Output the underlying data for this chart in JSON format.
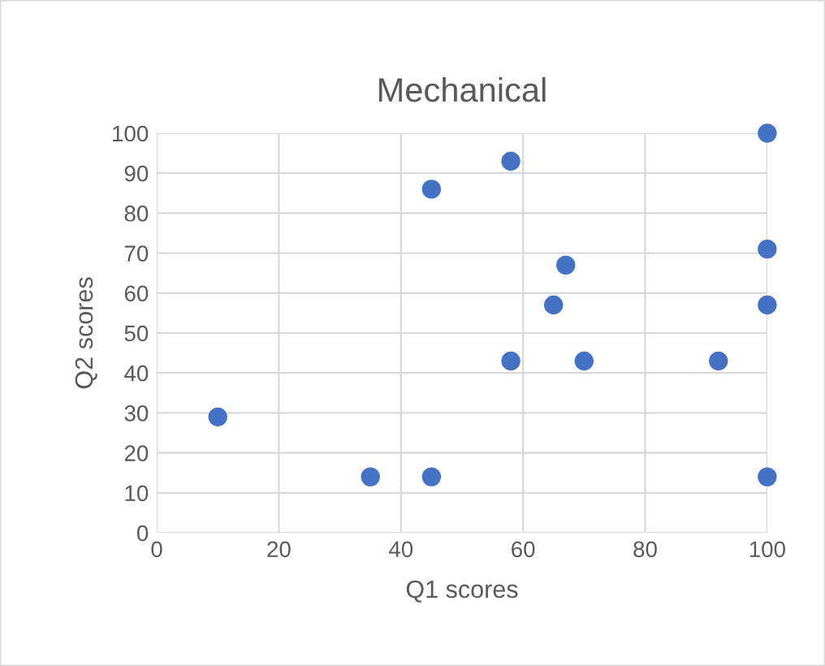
{
  "chart_data": {
    "type": "scatter",
    "title": "Mechanical",
    "xlabel": "Q1 scores",
    "ylabel": "Q2 scores",
    "x": [
      10,
      35,
      45,
      45,
      58,
      58,
      65,
      67,
      70,
      92,
      100,
      100,
      100,
      100
    ],
    "values": [
      29,
      14,
      14,
      86,
      93,
      43,
      57,
      67,
      43,
      43,
      100,
      71,
      57,
      14
    ],
    "color": "#4472c4",
    "marker": "circle",
    "xlim": [
      0,
      100
    ],
    "xticks": [
      0,
      20,
      40,
      60,
      80,
      100
    ],
    "ylim": [
      0,
      100
    ],
    "yticks": [
      0,
      10,
      20,
      30,
      40,
      50,
      60,
      70,
      80,
      90,
      100
    ],
    "grid": true
  }
}
